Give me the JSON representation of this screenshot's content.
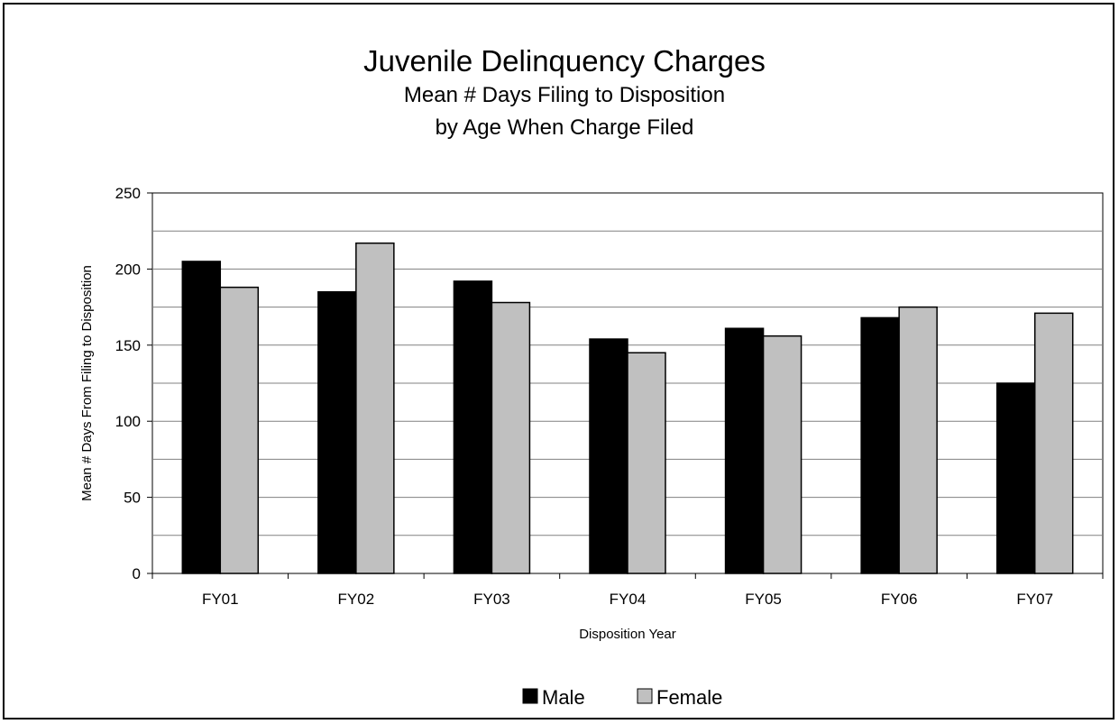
{
  "chart_data": {
    "type": "bar",
    "title": "Juvenile Delinquency Charges",
    "subtitle_lines": [
      "Mean # Days Filing to Disposition",
      "by Age When Charge Filed"
    ],
    "xlabel": "Disposition Year",
    "ylabel": "Mean # Days From Filing to Disposition",
    "categories": [
      "FY01",
      "FY02",
      "FY03",
      "FY04",
      "FY05",
      "FY06",
      "FY07"
    ],
    "series": [
      {
        "name": "Male",
        "color": "#000000",
        "values": [
          205,
          185,
          192,
          154,
          161,
          168,
          125
        ]
      },
      {
        "name": "Female",
        "color": "#c0c0c0",
        "values": [
          188,
          217,
          178,
          145,
          156,
          175,
          171
        ]
      }
    ],
    "ylim": [
      0,
      250
    ],
    "yticks": [
      0,
      50,
      100,
      150,
      200,
      250
    ],
    "grid": true,
    "legend_position": "bottom"
  }
}
